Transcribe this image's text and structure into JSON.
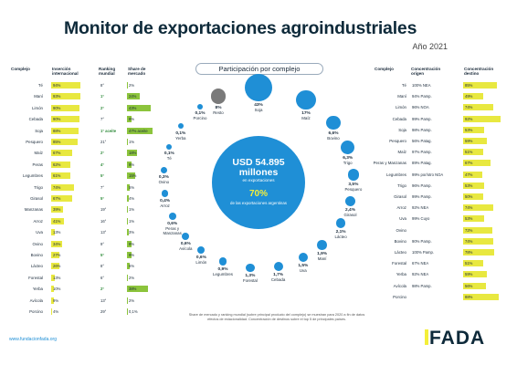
{
  "title": "Monitor de exportaciones agroindustriales",
  "year": "Año 2021",
  "left_headers": {
    "complejo": "Complejo",
    "insercion": "Inserción internacional",
    "ranking": "Ranking mundial",
    "share": "Share de mercado"
  },
  "right_headers": {
    "complejo": "Complejo",
    "origen": "Concentración origen",
    "destino": "Concentración destino"
  },
  "center_title": "Participación por complejo",
  "center": {
    "value": "USD 54.895 millones",
    "sub": "en exportaciones",
    "pct": "70%",
    "desc": "de las exportaciones argentinas"
  },
  "chart_data": [
    {
      "type": "table",
      "title": "Inserción internacional / Ranking / Share",
      "columns": [
        "Complejo",
        "Inserción internacional",
        "Ranking mundial",
        "Share de mercado"
      ],
      "rows": [
        [
          "Té",
          "94%",
          "8°",
          "2%"
        ],
        [
          "Maní",
          "93%",
          "1°",
          "24%"
        ],
        [
          "Limón",
          "90%",
          "2°",
          "43%"
        ],
        [
          "Cebada",
          "90%",
          "7°",
          "8%"
        ],
        [
          "Soja",
          "88%",
          "1° aceite / 1° harina",
          "47% aceite / 32% harina"
        ],
        [
          "Pesquero",
          "85%",
          "21°",
          "1%"
        ],
        [
          "Maíz",
          "67%",
          "2°",
          "18%"
        ],
        [
          "Peras",
          "62%",
          "4°",
          "9%"
        ],
        [
          "Legumbres",
          "61%",
          "5°",
          "15%"
        ],
        [
          "Trigo",
          "74%",
          "7°",
          "5%"
        ],
        [
          "Girasol",
          "67%",
          "5°",
          "4%"
        ],
        [
          "Manzanas",
          "39%",
          "19°",
          "1%"
        ],
        [
          "Arroz",
          "41%",
          "16°",
          "1%"
        ],
        [
          "Uva",
          "13%",
          "13°",
          "3%"
        ],
        [
          "Ovino",
          "34%",
          "9°",
          "8%"
        ],
        [
          "Bovino",
          "27%",
          "5°",
          "9%"
        ],
        [
          "Lácteo",
          "26%",
          "8°",
          "5%"
        ],
        [
          "Forestal",
          "13%",
          "6°",
          "2%"
        ],
        [
          "Yerba",
          "10%",
          "2°",
          "38%"
        ],
        [
          "Avícola",
          "9%",
          "13°",
          "2%"
        ],
        [
          "Porcino",
          "4%",
          "29°",
          "0,1%"
        ]
      ]
    },
    {
      "type": "table",
      "title": "Concentración",
      "columns": [
        "Complejo",
        "Concentración origen",
        "Concentración destino"
      ],
      "rows": [
        [
          "Té",
          "100% NEA",
          "85%"
        ],
        [
          "Maní",
          "94% Pamp.",
          "49%"
        ],
        [
          "Limón",
          "96% NOA",
          "74%"
        ],
        [
          "Cebada",
          "99% Pamp.",
          "92%"
        ],
        [
          "Soja",
          "98% Pamp.",
          "53%"
        ],
        [
          "Pesquero",
          "56% Patag.",
          "59%"
        ],
        [
          "Maíz",
          "97% Pamp.",
          "51%"
        ],
        [
          "Peras y Manzanas",
          "89% Patag.",
          "67%"
        ],
        [
          "Legumbres",
          "99% por/otro NOA",
          "47%"
        ],
        [
          "Trigo",
          "96% Pamp.",
          "53%"
        ],
        [
          "Girasol",
          "99% Pamp.",
          "50%"
        ],
        [
          "Arroz",
          "92% NEA",
          "74%"
        ],
        [
          "Uva",
          "99% Cuyo",
          "53%"
        ],
        [
          "Ovino",
          "",
          "72%"
        ],
        [
          "Bovino",
          "90% Pamp.",
          "74%"
        ],
        [
          "Lácteo",
          "100% Pamp.",
          "78%"
        ],
        [
          "Forestal",
          "67% NEA",
          "51%"
        ],
        [
          "Yerba",
          "92% NEA",
          "59%"
        ],
        [
          "Avícola",
          "98% Pamp.",
          "56%"
        ],
        [
          "Porcino",
          "",
          "88%"
        ]
      ]
    },
    {
      "type": "scatter",
      "title": "Participación por complejo",
      "points": [
        {
          "label": "Soja",
          "value": "43%"
        },
        {
          "label": "Maíz",
          "value": "17%"
        },
        {
          "label": "Bovino",
          "value": "6,6%"
        },
        {
          "label": "Trigo",
          "value": "6,3%"
        },
        {
          "label": "Pesquero",
          "value": "3,5%"
        },
        {
          "label": "Girasol",
          "value": "2,4%"
        },
        {
          "label": "Lácteo",
          "value": "2,1%"
        },
        {
          "label": "Maní",
          "value": "1,9%"
        },
        {
          "label": "Uva",
          "value": "1,5%"
        },
        {
          "label": "Cebada",
          "value": "1,7%"
        },
        {
          "label": "Forestal",
          "value": "1,3%"
        },
        {
          "label": "Legumbres",
          "value": "0,9%"
        },
        {
          "label": "Limón",
          "value": "0,6%"
        },
        {
          "label": "Avícola",
          "value": "0,6%"
        },
        {
          "label": "Peras y Manzanas",
          "value": "0,6%"
        },
        {
          "label": "Arroz",
          "value": "0,4%"
        },
        {
          "label": "Ovino",
          "value": "0,3%"
        },
        {
          "label": "Té",
          "value": "0,1%"
        },
        {
          "label": "Yerba",
          "value": "0,1%"
        },
        {
          "label": "Porcino",
          "value": "0,1%"
        },
        {
          "label": "Resto",
          "value": "8%"
        }
      ]
    }
  ],
  "footnote": "Share de mercado y ranking mundial (sobre principal producto del complejo) se muestran para 2020 a fin de datos efectos de estacionalidad. Concentración de destinos sobre el top 5 de principales países.",
  "website": "www.fundacionfada.org",
  "logo": "FADA",
  "colors": {
    "yellow": "#e8e840",
    "green": "#8cc43c",
    "blue": "#1f8fd6"
  }
}
